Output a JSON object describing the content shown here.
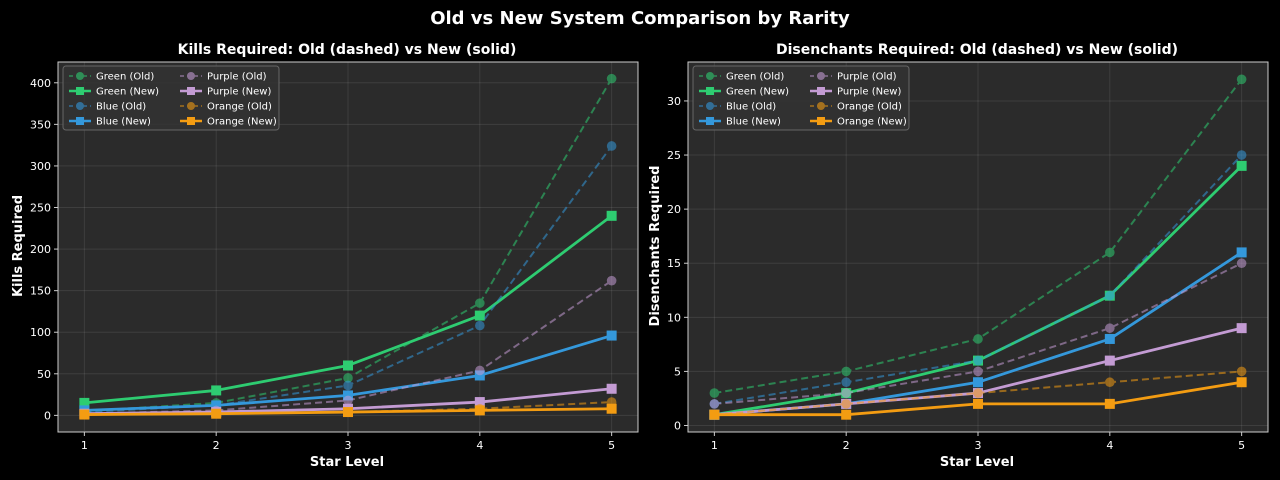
{
  "figure": {
    "title": "Old vs New System Comparison by Rarity"
  },
  "colors": {
    "Green": "#2ecc71",
    "Blue": "#3498db",
    "Purple": "#c39bd3",
    "Orange": "#f39c12",
    "background": "#000000",
    "axes": "#2b2b2b"
  },
  "chart_data": [
    {
      "type": "line",
      "title": "Kills Required: Old (dashed) vs New (solid)",
      "xlabel": "Star Level",
      "ylabel": "Kills Required",
      "x": [
        1,
        2,
        3,
        4,
        5
      ],
      "xlim": [
        0.8,
        5.2
      ],
      "ylim": [
        -20,
        425
      ],
      "yticks": [
        0,
        50,
        100,
        150,
        200,
        250,
        300,
        350,
        400
      ],
      "grid": true,
      "legend_position": "top-left",
      "series": [
        {
          "name": "Green (Old)",
          "rarity": "Green",
          "style": "old",
          "values": [
            5,
            15,
            45,
            135,
            405
          ]
        },
        {
          "name": "Green (New)",
          "rarity": "Green",
          "style": "new",
          "values": [
            15,
            30,
            60,
            120,
            240
          ]
        },
        {
          "name": "Blue (Old)",
          "rarity": "Blue",
          "style": "old",
          "values": [
            4,
            12,
            36,
            108,
            324
          ]
        },
        {
          "name": "Blue (New)",
          "rarity": "Blue",
          "style": "new",
          "values": [
            6,
            12,
            24,
            48,
            96
          ]
        },
        {
          "name": "Purple (Old)",
          "rarity": "Purple",
          "style": "old",
          "values": [
            2,
            6,
            18,
            54,
            162
          ]
        },
        {
          "name": "Purple (New)",
          "rarity": "Purple",
          "style": "new",
          "values": [
            2,
            4,
            8,
            16,
            32
          ]
        },
        {
          "name": "Orange (Old)",
          "rarity": "Orange",
          "style": "old",
          "values": [
            1,
            2,
            4,
            8,
            16
          ]
        },
        {
          "name": "Orange (New)",
          "rarity": "Orange",
          "style": "new",
          "values": [
            1,
            2,
            4,
            6,
            8
          ]
        }
      ]
    },
    {
      "type": "line",
      "title": "Disenchants Required: Old (dashed) vs New (solid)",
      "xlabel": "Star Level",
      "ylabel": "Disenchants Required",
      "x": [
        1,
        2,
        3,
        4,
        5
      ],
      "xlim": [
        0.8,
        5.2
      ],
      "ylim": [
        -0.6,
        33.6
      ],
      "yticks": [
        0,
        5,
        10,
        15,
        20,
        25,
        30
      ],
      "grid": true,
      "legend_position": "top-left",
      "series": [
        {
          "name": "Green (Old)",
          "rarity": "Green",
          "style": "old",
          "values": [
            3,
            5,
            8,
            16,
            32
          ]
        },
        {
          "name": "Green (New)",
          "rarity": "Green",
          "style": "new",
          "values": [
            1,
            3,
            6,
            12,
            24
          ]
        },
        {
          "name": "Blue (Old)",
          "rarity": "Blue",
          "style": "old",
          "values": [
            2,
            4,
            6,
            12,
            25
          ]
        },
        {
          "name": "Blue (New)",
          "rarity": "Blue",
          "style": "new",
          "values": [
            1,
            2,
            4,
            8,
            16
          ]
        },
        {
          "name": "Purple (Old)",
          "rarity": "Purple",
          "style": "old",
          "values": [
            2,
            3,
            5,
            9,
            15
          ]
        },
        {
          "name": "Purple (New)",
          "rarity": "Purple",
          "style": "new",
          "values": [
            1,
            2,
            3,
            6,
            9
          ]
        },
        {
          "name": "Orange (Old)",
          "rarity": "Orange",
          "style": "old",
          "values": [
            1,
            2,
            3,
            4,
            5
          ]
        },
        {
          "name": "Orange (New)",
          "rarity": "Orange",
          "style": "new",
          "values": [
            1,
            1,
            2,
            2,
            4
          ]
        }
      ]
    }
  ]
}
